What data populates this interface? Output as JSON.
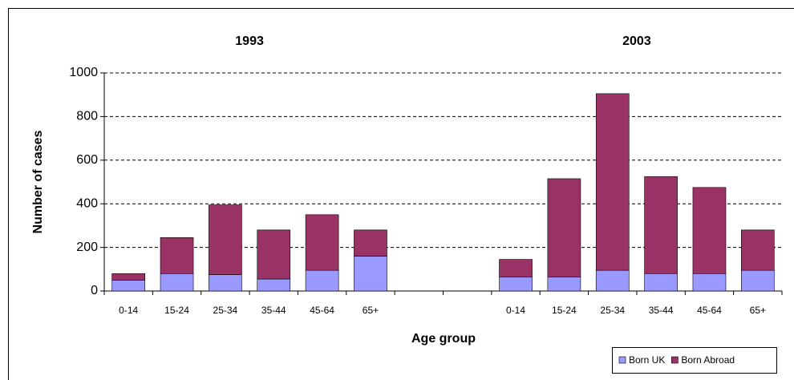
{
  "chart_data": {
    "type": "stacked-bar",
    "group_labels": [
      "1993",
      "2003"
    ],
    "x_label": "Age group",
    "y_label": "Number of cases",
    "categories": [
      "0-14",
      "15-24",
      "25-34",
      "35-44",
      "45-64",
      "65+",
      null,
      null,
      "0-14",
      "15-24",
      "25-34",
      "35-44",
      "45-64",
      "65+"
    ],
    "series": [
      {
        "name": "Born UK",
        "color": "#9999ff",
        "values": [
          50,
          80,
          75,
          55,
          95,
          160,
          null,
          null,
          65,
          65,
          95,
          80,
          80,
          95
        ]
      },
      {
        "name": "Born Abroad",
        "color": "#993366",
        "values": [
          30,
          165,
          320,
          225,
          255,
          120,
          null,
          null,
          80,
          450,
          810,
          445,
          395,
          185
        ]
      }
    ],
    "ylim": [
      0,
      1000
    ],
    "yticks": [
      0,
      200,
      400,
      600,
      800,
      1000
    ],
    "grid": true,
    "legend": "bottom-right"
  }
}
